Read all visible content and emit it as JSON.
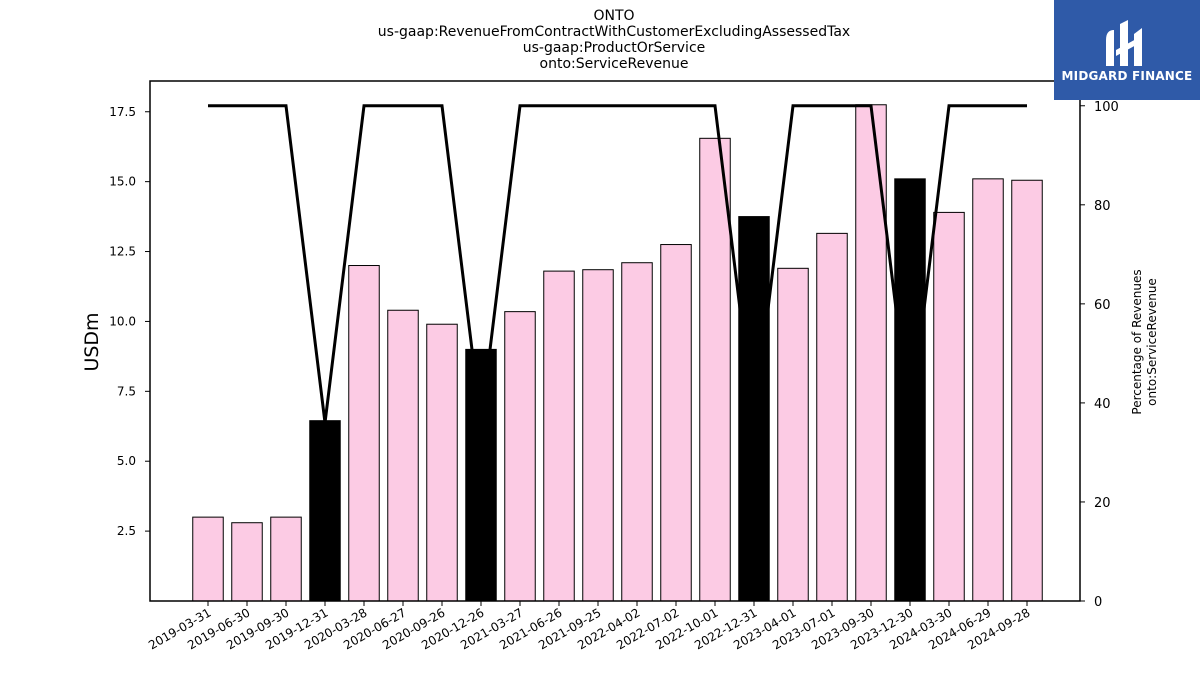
{
  "title_lines": [
    "ONTO",
    "us-gaap:RevenueFromContractWithCustomerExcludingAssessedTax",
    "us-gaap:ProductOrService",
    "onto:ServiceRevenue"
  ],
  "logo_text": "MIDGARD FINANCE",
  "colors": {
    "bar_fill": "#fccbe4",
    "bar_highlight": "#000000",
    "line": "#000000"
  },
  "chart_data": {
    "type": "bar",
    "categories": [
      "2019-03-31",
      "2019-06-30",
      "2019-09-30",
      "2019-12-31",
      "2020-03-28",
      "2020-06-27",
      "2020-09-26",
      "2020-12-26",
      "2021-03-27",
      "2021-06-26",
      "2021-09-25",
      "2022-04-02",
      "2022-07-02",
      "2022-10-01",
      "2022-12-31",
      "2023-04-01",
      "2023-07-01",
      "2023-09-30",
      "2023-12-30",
      "2024-03-30",
      "2024-06-29",
      "2024-09-28"
    ],
    "values": [
      3.0,
      2.8,
      3.0,
      6.45,
      12.0,
      10.4,
      9.9,
      9.0,
      10.35,
      11.8,
      11.85,
      12.1,
      12.75,
      16.55,
      13.75,
      11.9,
      13.15,
      17.75,
      15.1,
      13.9,
      15.1,
      15.05
    ],
    "highlighted": [
      false,
      false,
      false,
      true,
      false,
      false,
      false,
      true,
      false,
      false,
      false,
      false,
      false,
      false,
      true,
      false,
      false,
      false,
      true,
      false,
      false,
      false
    ],
    "ylabel": "USDm",
    "ylim": [
      0,
      18.6
    ],
    "yticks": [
      2.5,
      5.0,
      7.5,
      10.0,
      12.5,
      15.0,
      17.5
    ],
    "y2label_lines": [
      "Percentage of Revenues",
      "onto:ServiceRevenue"
    ],
    "y2lim": [
      0,
      105
    ],
    "y2ticks": [
      0,
      20,
      40,
      60,
      80,
      100
    ],
    "line_series": [
      100,
      100,
      100,
      36,
      100,
      100,
      100,
      36,
      100,
      100,
      100,
      100,
      100,
      100,
      36,
      100,
      100,
      100,
      36,
      100,
      100,
      100
    ],
    "grid": false
  }
}
